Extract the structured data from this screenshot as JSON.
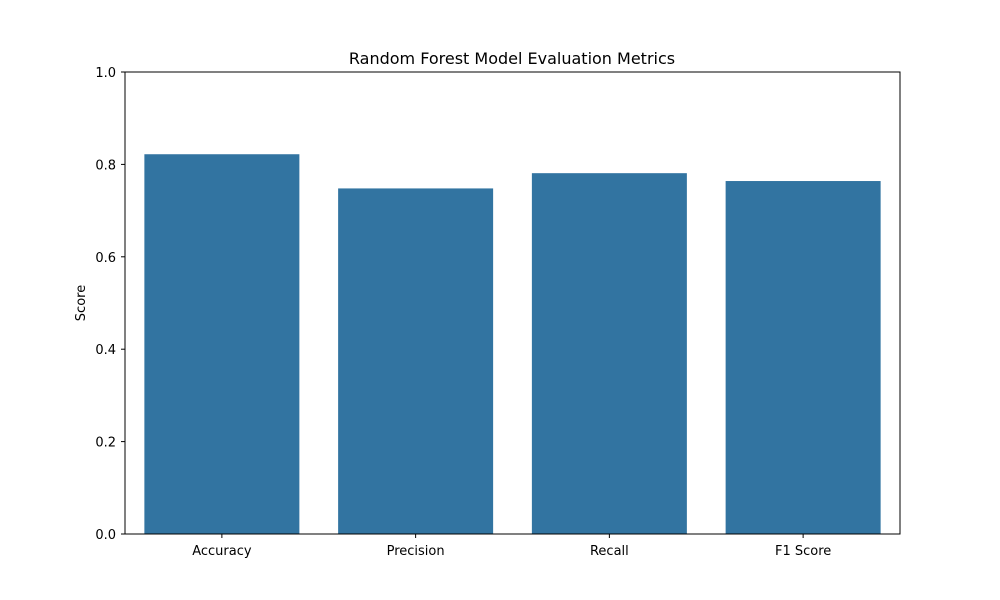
{
  "chart_data": {
    "type": "bar",
    "title": "Random Forest Model Evaluation Metrics",
    "xlabel": "",
    "ylabel": "Score",
    "categories": [
      "Accuracy",
      "Precision",
      "Recall",
      "F1 Score"
    ],
    "values": [
      0.822,
      0.748,
      0.781,
      0.764
    ],
    "ylim": [
      0,
      1.0
    ],
    "yticks": [
      "0.0",
      "0.2",
      "0.4",
      "0.6",
      "0.8",
      "1.0"
    ],
    "grid": false,
    "bar_color": "#3274a1"
  }
}
